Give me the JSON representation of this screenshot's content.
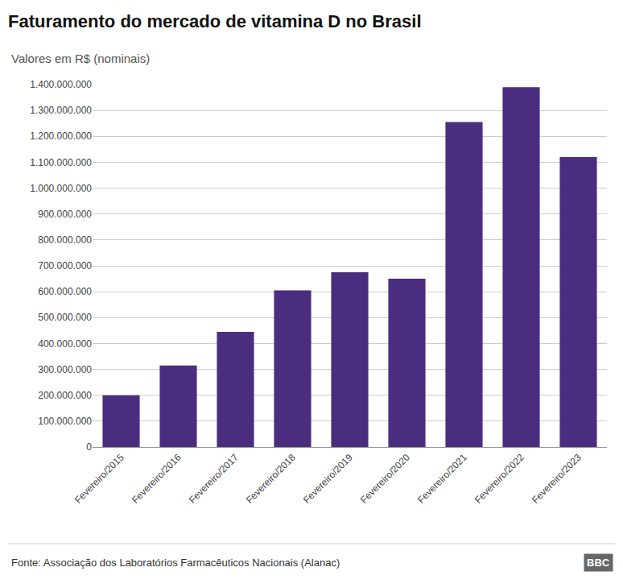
{
  "chart_data": {
    "type": "bar",
    "title": "Faturamento do mercado de vitamina D no Brasil",
    "subtitle": "Valores em R$ (nominais)",
    "categories": [
      "Fevereiro/2015",
      "Fevereiro/2016",
      "Fevereiro/2017",
      "Fevereiro/2018",
      "Fevereiro/2019",
      "Fevereiro/2020",
      "Fevereiro/2021",
      "Fevereiro/2022",
      "Fevereiro/2023"
    ],
    "values": [
      200000000,
      315000000,
      445000000,
      605000000,
      675000000,
      650000000,
      1255000000,
      1390000000,
      1120000000
    ],
    "color": "#4B2D7F",
    "ylim": [
      0,
      1400000000
    ],
    "yticks": [
      0,
      {
        "value": 100000000,
        "label": "100.000.000"
      },
      {
        "value": 200000000,
        "label": "200.000.000"
      },
      {
        "value": 300000000,
        "label": "300.000.000"
      },
      {
        "value": 400000000,
        "label": "400.000.000"
      },
      {
        "value": 500000000,
        "label": "500.000.000"
      },
      {
        "value": 600000000,
        "label": "600.000.000"
      },
      {
        "value": 700000000,
        "label": "700.000.000"
      },
      {
        "value": 800000000,
        "label": "800.000.000"
      },
      {
        "value": 900000000,
        "label": "900.000.000"
      },
      {
        "value": 1000000000,
        "label": "1.000.000.000"
      },
      {
        "value": 1100000000,
        "label": "1.100.000.000"
      },
      {
        "value": 1200000000,
        "label": "1.200.000.000"
      },
      {
        "value": 1300000000,
        "label": "1.300.000.000"
      },
      {
        "value": 1400000000,
        "label": "1.400.000.000"
      }
    ],
    "grid": true,
    "annotations": [
      "Fonte: Associação dos Laboratórios Farmacêuticos Nacionais (Alanac)",
      "BBC"
    ]
  }
}
